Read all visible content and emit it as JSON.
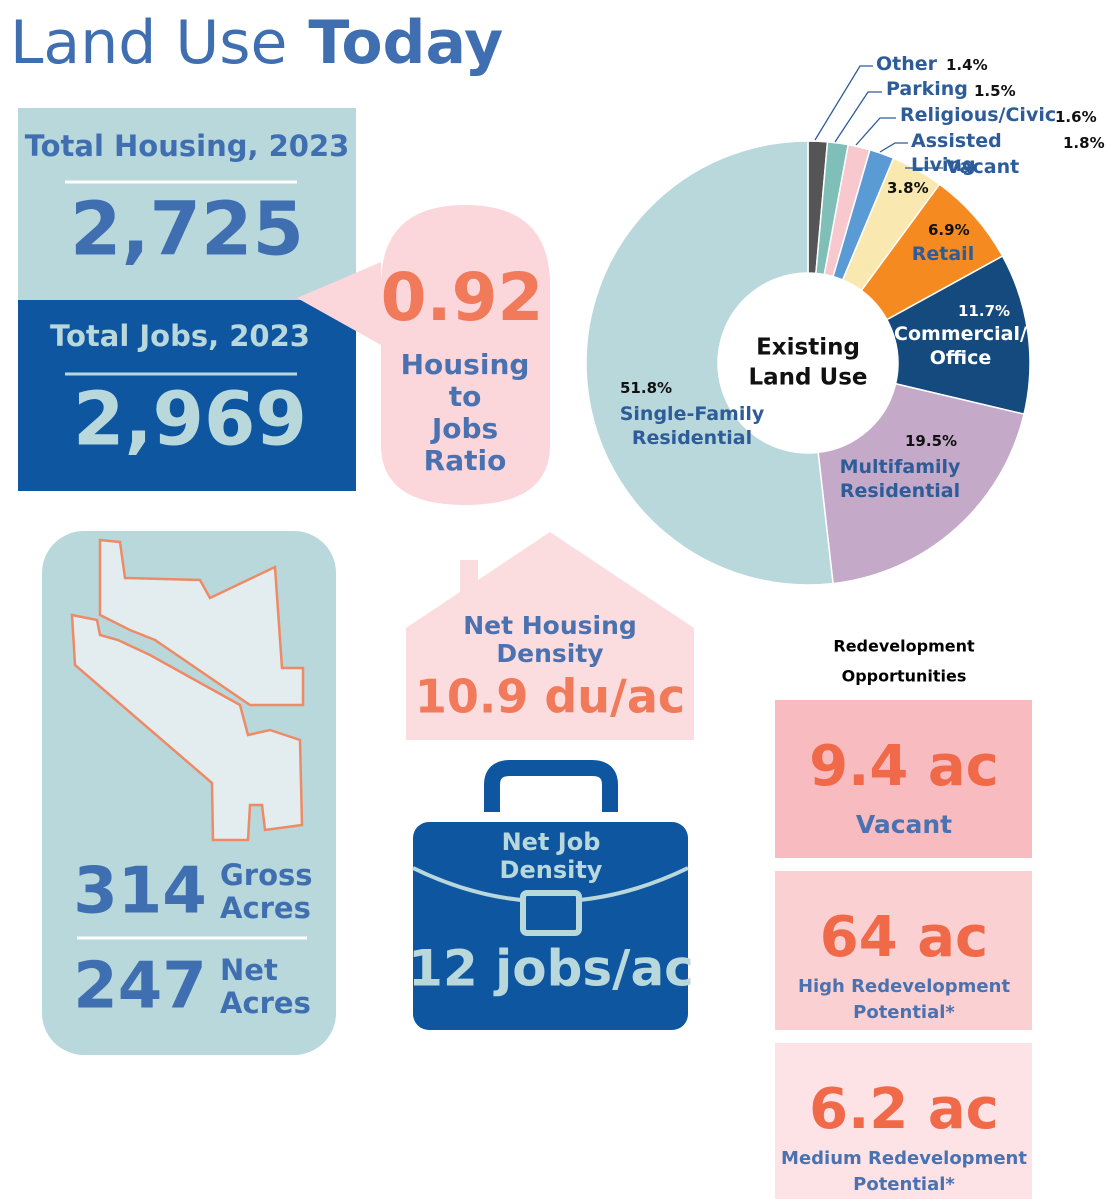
{
  "title_light": "Land Use",
  "title_bold": "Today",
  "housing": {
    "label": "Total Housing, 2023",
    "value": "2,725"
  },
  "jobs": {
    "label": "Total Jobs, 2023",
    "value": "2,969"
  },
  "ratio": {
    "value": "0.92",
    "label_lines": [
      "Housing",
      "to",
      "Jobs",
      "Ratio"
    ]
  },
  "acres": {
    "gross_value": "314",
    "gross_lines": [
      "Gross",
      "Acres"
    ],
    "net_value": "247",
    "net_lines": [
      "Net",
      "Acres"
    ]
  },
  "housing_density": {
    "label_lines": [
      "Net Housing",
      "Density"
    ],
    "value": "10.9 du/ac"
  },
  "job_density": {
    "label_lines": [
      "Net Job",
      "Density"
    ],
    "value": "12 jobs/ac"
  },
  "redevelopment": {
    "title_lines": [
      "Redevelopment",
      "Opportunities"
    ],
    "items": [
      {
        "value": "9.4 ac",
        "label_lines": [
          "Vacant"
        ]
      },
      {
        "value": "64 ac",
        "label_lines": [
          "High Redevelopment",
          "Potential*"
        ]
      },
      {
        "value": "6.2 ac",
        "label_lines": [
          "Medium Redevelopment",
          "Potential*"
        ]
      }
    ]
  },
  "chart_data": {
    "type": "donut",
    "center_lines": [
      "Existing",
      "Land Use"
    ],
    "categories": [
      "Other",
      "Parking",
      "Religious/Civic",
      "Assisted Living",
      "Vacant",
      "Retail",
      "Commercial/ Office",
      "Multifamily Residential",
      "Single-Family Residential"
    ],
    "values": [
      1.4,
      1.5,
      1.6,
      1.8,
      3.8,
      6.9,
      11.7,
      19.5,
      51.8
    ],
    "value_labels": [
      "1.4%",
      "1.5%",
      "1.6%",
      "1.8%",
      "3.8%",
      "6.9%",
      "11.7%",
      "19.5%",
      "51.8%"
    ],
    "colors": [
      "#555555",
      "#7fbfb8",
      "#f7c9cf",
      "#5b9bd5",
      "#f9e8b0",
      "#f48a20",
      "#154a7e",
      "#c4a9c8",
      "#b8d8dc"
    ]
  }
}
